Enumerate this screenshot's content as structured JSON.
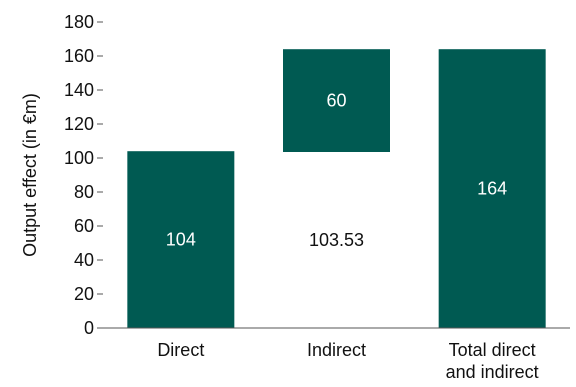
{
  "chart_data": {
    "type": "bar",
    "subtype": "waterfall",
    "categories": [
      "Direct",
      "Indirect",
      "Total direct\nand indirect"
    ],
    "bars": [
      {
        "category": "Direct",
        "start": 0,
        "end": 104,
        "label": "104"
      },
      {
        "category": "Indirect",
        "start": 103.53,
        "end": 164,
        "label": "60",
        "base_label": "103.53"
      },
      {
        "category": "Total direct\nand indirect",
        "start": 0,
        "end": 164,
        "label": "164"
      }
    ],
    "ylabel": "Output effect (in €m)",
    "ylim": [
      0,
      180
    ],
    "yticks": [
      0,
      20,
      40,
      60,
      80,
      100,
      120,
      140,
      160,
      180
    ],
    "grid": false,
    "colors": {
      "bar": "#005a52",
      "axis": "#555555",
      "text": "#111111"
    }
  }
}
